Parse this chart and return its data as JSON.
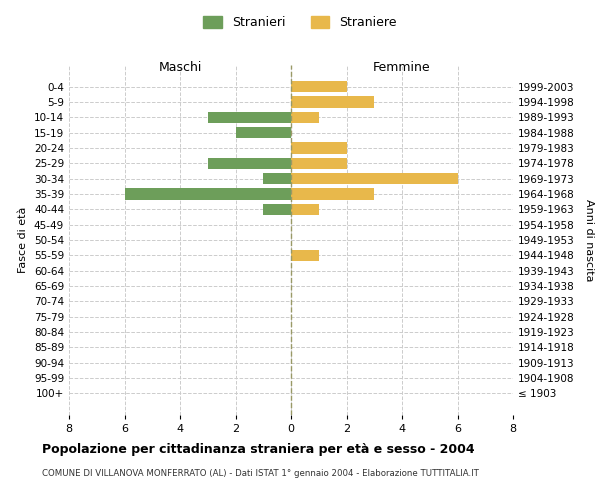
{
  "age_groups": [
    "0-4",
    "5-9",
    "10-14",
    "15-19",
    "20-24",
    "25-29",
    "30-34",
    "35-39",
    "40-44",
    "45-49",
    "50-54",
    "55-59",
    "60-64",
    "65-69",
    "70-74",
    "75-79",
    "80-84",
    "85-89",
    "90-94",
    "95-99",
    "100+"
  ],
  "birth_years": [
    "1999-2003",
    "1994-1998",
    "1989-1993",
    "1984-1988",
    "1979-1983",
    "1974-1978",
    "1969-1973",
    "1964-1968",
    "1959-1963",
    "1954-1958",
    "1949-1953",
    "1944-1948",
    "1939-1943",
    "1934-1938",
    "1929-1933",
    "1924-1928",
    "1919-1923",
    "1914-1918",
    "1909-1913",
    "1904-1908",
    "≤ 1903"
  ],
  "maschi": [
    0,
    0,
    3,
    2,
    0,
    3,
    1,
    6,
    1,
    0,
    0,
    0,
    0,
    0,
    0,
    0,
    0,
    0,
    0,
    0,
    0
  ],
  "femmine": [
    2,
    3,
    1,
    0,
    2,
    2,
    6,
    3,
    1,
    0,
    0,
    1,
    0,
    0,
    0,
    0,
    0,
    0,
    0,
    0,
    0
  ],
  "color_maschi": "#6d9e5a",
  "color_femmine": "#e8b84b",
  "title": "Popolazione per cittadinanza straniera per età e sesso - 2004",
  "subtitle": "COMUNE DI VILLANOVA MONFERRATO (AL) - Dati ISTAT 1° gennaio 2004 - Elaborazione TUTTITALIA.IT",
  "ylabel_left": "Fasce di età",
  "ylabel_right": "Anni di nascita",
  "legend_maschi": "Stranieri",
  "legend_femmine": "Straniere",
  "xlim": 8,
  "header_maschi": "Maschi",
  "header_femmine": "Femmine",
  "bg_color": "#ffffff",
  "grid_color": "#cccccc"
}
